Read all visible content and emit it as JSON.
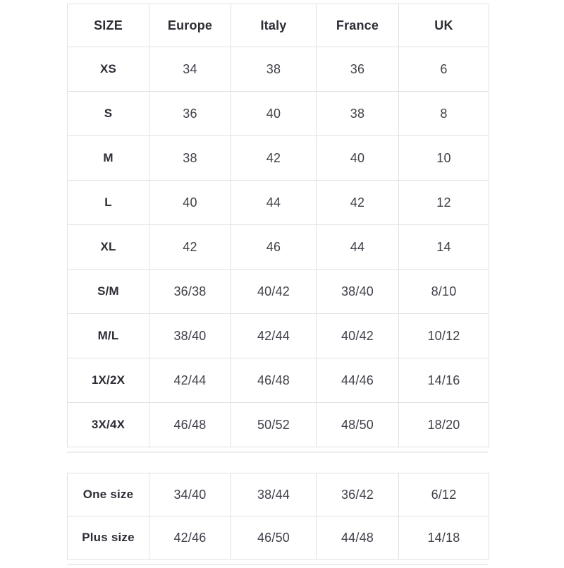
{
  "colors": {
    "border": "#e1e1e1",
    "label_text": "#2d2d36",
    "value_text": "#40404a",
    "shadow": "#ececec",
    "background": "#ffffff"
  },
  "size_table": {
    "headers": [
      "SIZE",
      "Europe",
      "Italy",
      "France",
      "UK"
    ],
    "rows": [
      {
        "label": "XS",
        "values": [
          "34",
          "38",
          "36",
          "6"
        ]
      },
      {
        "label": "S",
        "values": [
          "36",
          "40",
          "38",
          "8"
        ]
      },
      {
        "label": "M",
        "values": [
          "38",
          "42",
          "40",
          "10"
        ]
      },
      {
        "label": "L",
        "values": [
          "40",
          "44",
          "42",
          "12"
        ]
      },
      {
        "label": "XL",
        "values": [
          "42",
          "46",
          "44",
          "14"
        ]
      },
      {
        "label": "S/M",
        "values": [
          "36/38",
          "40/42",
          "38/40",
          "8/10"
        ]
      },
      {
        "label": "M/L",
        "values": [
          "38/40",
          "42/44",
          "40/42",
          "10/12"
        ]
      },
      {
        "label": "1X/2X",
        "values": [
          "42/44",
          "46/48",
          "44/46",
          "14/16"
        ]
      },
      {
        "label": "3X/4X",
        "values": [
          "46/48",
          "50/52",
          "48/50",
          "18/20"
        ]
      }
    ]
  },
  "special_table": {
    "rows": [
      {
        "label": "One size",
        "values": [
          "34/40",
          "38/44",
          "36/42",
          "6/12"
        ]
      },
      {
        "label": "Plus size",
        "values": [
          "42/46",
          "46/50",
          "44/48",
          "14/18"
        ]
      }
    ]
  }
}
